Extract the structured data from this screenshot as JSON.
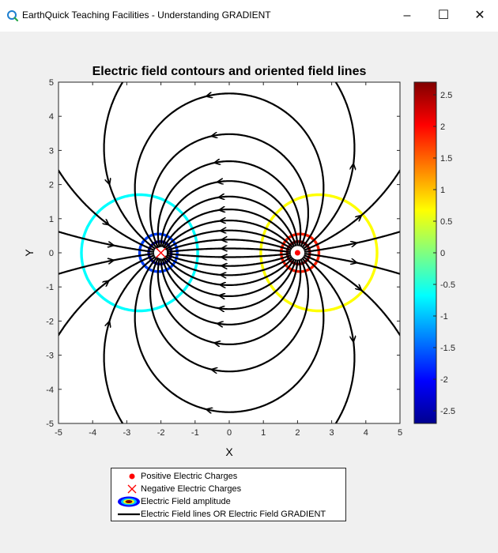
{
  "window": {
    "title": "EarthQuick Teaching Facilities - Understanding GRADIENT",
    "app_icon": "earthquick-logo-icon",
    "controls": {
      "minimize": "–",
      "maximize": "☐",
      "close": "✕"
    }
  },
  "chart_data": {
    "type": "contour",
    "title": "Electric field contours and oriented field lines",
    "xlabel": "X",
    "ylabel": "Y",
    "xlim": [
      -5,
      5
    ],
    "ylim": [
      -5,
      5
    ],
    "xticks": [
      -5,
      -4,
      -3,
      -2,
      -1,
      0,
      1,
      2,
      3,
      4,
      5
    ],
    "yticks": [
      -5,
      -4,
      -3,
      -2,
      -1,
      0,
      1,
      2,
      3,
      4,
      5
    ],
    "charges": [
      {
        "kind": "negative",
        "x": -2,
        "y": 0,
        "marker": "x",
        "color": "#ff0000"
      },
      {
        "kind": "positive",
        "x": 2,
        "y": 0,
        "marker": "dot",
        "color": "#ff0000"
      }
    ],
    "contour_levels": [
      {
        "value": 2.5,
        "color": "#800000"
      },
      {
        "value": 2.0,
        "color": "#ff2000"
      },
      {
        "value": 1.0,
        "color": "#ffff00"
      },
      {
        "value": 0.0,
        "color": "#80ff80"
      },
      {
        "value": -1.0,
        "color": "#00ffff"
      },
      {
        "value": -2.0,
        "color": "#0040ff"
      },
      {
        "value": -2.5,
        "color": "#00008f"
      }
    ],
    "colorbar": {
      "colormap": "jet",
      "range": [
        -2.7,
        2.7
      ],
      "ticks": [
        2.5,
        2,
        1.5,
        1,
        0.5,
        0,
        -0.5,
        -1,
        -1.5,
        -2,
        -2.5
      ]
    },
    "field_lines": {
      "color": "#000000",
      "direction": "from positive to negative charge"
    },
    "legend": {
      "placement": "bottom",
      "entries": [
        {
          "label": "Positive Electric Charges",
          "symbol": "dot",
          "color": "#ff0000"
        },
        {
          "label": "Negative Electric Charges",
          "symbol": "x",
          "color": "#ff0000"
        },
        {
          "label": "Electric Field amplitude",
          "symbol": "contour-patch"
        },
        {
          "label": "Electric Field lines OR Electric Field GRADIENT",
          "symbol": "line",
          "color": "#000000"
        }
      ]
    },
    "grid": false
  }
}
